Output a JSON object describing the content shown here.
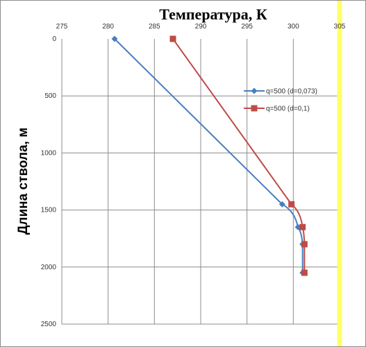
{
  "chart_data": {
    "type": "line",
    "title": "Температура, К",
    "xlabel": "",
    "ylabel": "Длина ствола, м",
    "x_axis_position": "top",
    "y_axis_inverted": true,
    "xlim": [
      275,
      305
    ],
    "ylim": [
      0,
      2500
    ],
    "x_ticks": [
      "275",
      "280",
      "285",
      "290",
      "295",
      "300",
      "305"
    ],
    "y_ticks": [
      "0",
      "500",
      "1000",
      "1500",
      "2000",
      "2500"
    ],
    "x_tick_values": [
      275,
      280,
      285,
      290,
      295,
      300,
      305
    ],
    "y_tick_values": [
      0,
      500,
      1000,
      1500,
      2000,
      2500
    ],
    "grid": "vertical and horizontal",
    "legend_position": "right",
    "reference_line": {
      "x": 305,
      "color": "#ffff66"
    },
    "series": [
      {
        "name": "q=500 (d=0,073)",
        "color": "#4a7ebb",
        "marker": "diamond",
        "points": [
          {
            "x": 280.7,
            "y": 0
          },
          {
            "x": 298.8,
            "y": 1450
          },
          {
            "x": 300.5,
            "y": 1650
          },
          {
            "x": 301.0,
            "y": 1800
          },
          {
            "x": 301.0,
            "y": 2050
          }
        ]
      },
      {
        "name": "q=500 (d=0,1)",
        "color": "#be4b48",
        "marker": "square",
        "points": [
          {
            "x": 287.0,
            "y": 0
          },
          {
            "x": 299.8,
            "y": 1450
          },
          {
            "x": 301.0,
            "y": 1650
          },
          {
            "x": 301.2,
            "y": 1800
          },
          {
            "x": 301.2,
            "y": 2050
          }
        ]
      }
    ]
  }
}
